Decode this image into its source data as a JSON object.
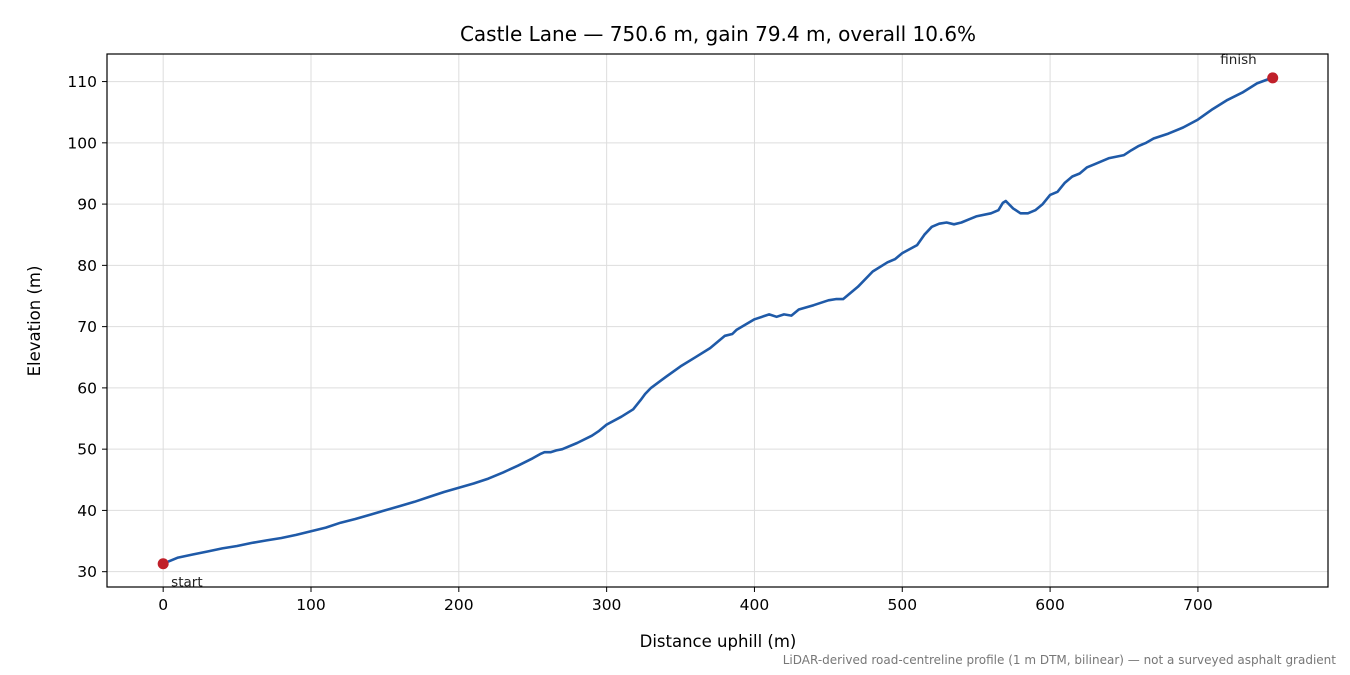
{
  "chart_data": {
    "type": "line",
    "title": "Castle Lane — 750.6 m, gain 79.4 m, overall 10.6%",
    "xlabel": "Distance uphill (m)",
    "ylabel": "Elevation (m)",
    "xlim": [
      -38,
      788
    ],
    "ylim": [
      27.5,
      114.5
    ],
    "xticks": [
      0,
      100,
      200,
      300,
      400,
      500,
      600,
      700
    ],
    "yticks": [
      30,
      40,
      50,
      60,
      70,
      80,
      90,
      100,
      110
    ],
    "grid": true,
    "footnote": "LiDAR-derived road-centreline profile (1 m DTM, bilinear) — not a surveyed asphalt gradient",
    "line_color": "#1f5aa8",
    "marker_color": "#c0202a",
    "series": [
      {
        "x": [
          0,
          10,
          20,
          30,
          40,
          50,
          60,
          70,
          80,
          90,
          100,
          110,
          120,
          130,
          140,
          150,
          160,
          170,
          180,
          190,
          200,
          210,
          220,
          230,
          240,
          250,
          255,
          258,
          262,
          266,
          270,
          280,
          290,
          295,
          300,
          310,
          318,
          323,
          326,
          330,
          340,
          350,
          360,
          370,
          380,
          385,
          388,
          393,
          400,
          410,
          415,
          420,
          425,
          430,
          440,
          450,
          455,
          460,
          470,
          480,
          490,
          495,
          500,
          510,
          515,
          520,
          525,
          530,
          535,
          540,
          545,
          550,
          560,
          565,
          568,
          570,
          575,
          580,
          585,
          590,
          595,
          600,
          605,
          610,
          615,
          620,
          625,
          630,
          640,
          650,
          655,
          660,
          665,
          670,
          680,
          690,
          700,
          710,
          720,
          730,
          740,
          750
        ],
        "y": [
          31.3,
          32.3,
          32.8,
          33.3,
          33.8,
          34.2,
          34.7,
          35.1,
          35.5,
          36.0,
          36.6,
          37.2,
          38.0,
          38.6,
          39.3,
          40.0,
          40.7,
          41.4,
          42.2,
          43.0,
          43.7,
          44.4,
          45.2,
          46.2,
          47.3,
          48.5,
          49.2,
          49.5,
          49.5,
          49.8,
          50.0,
          51.0,
          52.2,
          53.0,
          54.0,
          55.3,
          56.5,
          58.0,
          59.0,
          60.0,
          61.8,
          63.5,
          65.0,
          66.5,
          68.5,
          68.8,
          69.5,
          70.2,
          71.2,
          72.0,
          71.6,
          72.0,
          71.8,
          72.8,
          73.5,
          74.3,
          74.5,
          74.5,
          76.5,
          79.0,
          80.5,
          81.0,
          82.0,
          83.3,
          85.0,
          86.3,
          86.8,
          87.0,
          86.7,
          87.0,
          87.5,
          88.0,
          88.5,
          89.0,
          90.2,
          90.5,
          89.3,
          88.5,
          88.5,
          89.0,
          90.0,
          91.5,
          92.0,
          93.5,
          94.5,
          95.0,
          96.0,
          96.5,
          97.5,
          98.0,
          98.8,
          99.5,
          100.0,
          100.7,
          101.5,
          102.5,
          103.8,
          105.5,
          107.0,
          108.2,
          109.7,
          110.6
        ]
      }
    ],
    "annotations": [
      {
        "text": "start",
        "x": 0,
        "y": 31.3
      },
      {
        "text": "finish",
        "x": 750.6,
        "y": 110.6
      }
    ]
  }
}
